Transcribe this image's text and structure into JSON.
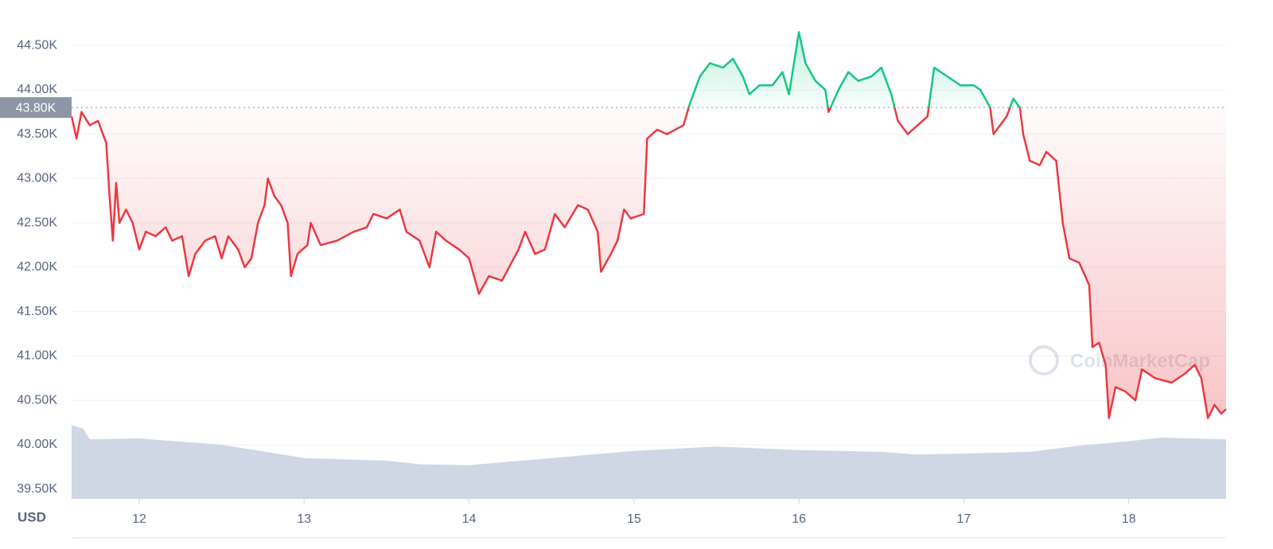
{
  "chart_data": {
    "type": "line",
    "y_label": "USD",
    "watermark": "CoinMarketCap",
    "xlim": [
      11.59,
      18.59
    ],
    "xticks": [
      12,
      13,
      14,
      15,
      16,
      17,
      18
    ],
    "ylim": [
      39390,
      44940
    ],
    "yticks": [
      {
        "value": 39500,
        "label": "39.50K"
      },
      {
        "value": 40000,
        "label": "40.00K"
      },
      {
        "value": 40500,
        "label": "40.50K"
      },
      {
        "value": 41000,
        "label": "41.00K"
      },
      {
        "value": 41500,
        "label": "41.50K"
      },
      {
        "value": 42000,
        "label": "42.00K"
      },
      {
        "value": 42500,
        "label": "42.50K"
      },
      {
        "value": 43000,
        "label": "43.00K"
      },
      {
        "value": 43500,
        "label": "43.50K"
      },
      {
        "value": 44000,
        "label": "44.00K"
      },
      {
        "value": 44500,
        "label": "44.50K"
      }
    ],
    "baseline": {
      "value": 43800,
      "label": "43.80K"
    },
    "grid": true,
    "up_color": "#16c784",
    "down_color": "#ea3943",
    "x": [
      11.59,
      11.62,
      11.65,
      11.7,
      11.75,
      11.8,
      11.82,
      11.84,
      11.86,
      11.88,
      11.92,
      11.96,
      12.0,
      12.04,
      12.1,
      12.16,
      12.2,
      12.26,
      12.3,
      12.34,
      12.4,
      12.46,
      12.5,
      12.54,
      12.6,
      12.64,
      12.68,
      12.72,
      12.76,
      12.78,
      12.82,
      12.86,
      12.9,
      12.92,
      12.96,
      13.02,
      13.04,
      13.1,
      13.2,
      13.3,
      13.38,
      13.42,
      13.5,
      13.58,
      13.62,
      13.7,
      13.76,
      13.8,
      13.86,
      13.94,
      14.0,
      14.06,
      14.12,
      14.2,
      14.3,
      14.34,
      14.4,
      14.46,
      14.52,
      14.58,
      14.66,
      14.72,
      14.78,
      14.8,
      14.86,
      14.9,
      14.94,
      14.98,
      15.06,
      15.08,
      15.14,
      15.2,
      15.3,
      15.34,
      15.4,
      15.46,
      15.54,
      15.6,
      15.66,
      15.7,
      15.76,
      15.84,
      15.9,
      15.94,
      16.0,
      16.04,
      16.1,
      16.16,
      16.18,
      16.24,
      16.3,
      16.36,
      16.44,
      16.5,
      16.56,
      16.6,
      16.66,
      16.72,
      16.78,
      16.82,
      16.9,
      16.98,
      17.06,
      17.1,
      17.16,
      17.18,
      17.26,
      17.3,
      17.34,
      17.36,
      17.4,
      17.46,
      17.5,
      17.56,
      17.6,
      17.64,
      17.7,
      17.76,
      17.78,
      17.82,
      17.86,
      17.88,
      17.92,
      17.98,
      18.04,
      18.08,
      18.16,
      18.26,
      18.34,
      18.4,
      18.44,
      18.48,
      18.52,
      18.56,
      18.59
    ],
    "values": [
      43700,
      43450,
      43750,
      43600,
      43650,
      43400,
      42800,
      42300,
      42950,
      42500,
      42650,
      42500,
      42200,
      42400,
      42350,
      42450,
      42300,
      42350,
      41900,
      42150,
      42300,
      42350,
      42100,
      42350,
      42200,
      42000,
      42100,
      42500,
      42700,
      43000,
      42800,
      42700,
      42500,
      41900,
      42150,
      42250,
      42500,
      42250,
      42300,
      42400,
      42450,
      42600,
      42550,
      42650,
      42400,
      42300,
      42000,
      42400,
      42300,
      42200,
      42100,
      41700,
      41900,
      41850,
      42200,
      42400,
      42150,
      42200,
      42600,
      42450,
      42700,
      42650,
      42400,
      41950,
      42150,
      42300,
      42650,
      42550,
      42600,
      43450,
      43550,
      43500,
      43600,
      43850,
      44150,
      44300,
      44250,
      44350,
      44150,
      43950,
      44050,
      44050,
      44200,
      43950,
      44650,
      44300,
      44100,
      44000,
      43750,
      44000,
      44200,
      44100,
      44150,
      44250,
      43950,
      43650,
      43500,
      43600,
      43700,
      44250,
      44150,
      44050,
      44050,
      44000,
      43800,
      43500,
      43700,
      43900,
      43800,
      43500,
      43200,
      43150,
      43300,
      43200,
      42500,
      42100,
      42050,
      41800,
      41100,
      41150,
      40900,
      40300,
      40650,
      40600,
      40500,
      40850,
      40750,
      40700,
      40800,
      40900,
      40750,
      40300,
      40450,
      40350,
      40400
    ],
    "volume": {
      "color": "#cfd6e4",
      "x": [
        11.59,
        11.66,
        11.7,
        12.0,
        12.5,
        12.7,
        13.0,
        13.5,
        13.7,
        14.0,
        14.5,
        15.0,
        15.5,
        16.0,
        16.5,
        16.7,
        17.0,
        17.4,
        17.7,
        18.0,
        18.2,
        18.59
      ],
      "values": [
        40220,
        40180,
        40060,
        40070,
        40000,
        39940,
        39850,
        39820,
        39780,
        39770,
        39850,
        39930,
        39980,
        39940,
        39920,
        39890,
        39900,
        39920,
        39990,
        40040,
        40080,
        40060
      ]
    }
  }
}
